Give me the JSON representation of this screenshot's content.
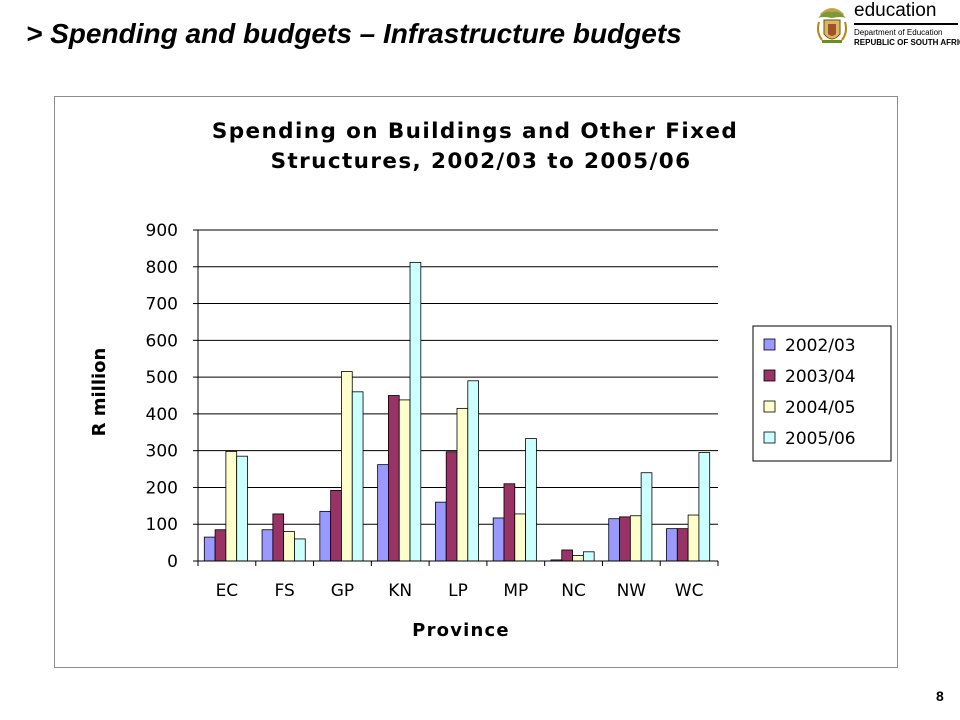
{
  "slide": {
    "title": "> Spending and budgets – Infrastructure budgets",
    "page_number": "8"
  },
  "logo": {
    "word": "education",
    "line1": "Department of Education",
    "line2": "REPUBLIC OF SOUTH AFRICA"
  },
  "chart_data": {
    "type": "bar",
    "title_lines": [
      "Spending on Buildings and Other Fixed",
      "Structures, 2002/03 to 2005/06"
    ],
    "xlabel": "Province",
    "ylabel": "R million",
    "categories": [
      "EC",
      "FS",
      "GP",
      "KN",
      "LP",
      "MP",
      "NC",
      "NW",
      "WC"
    ],
    "ylim": [
      0,
      900
    ],
    "yticks": [
      "0",
      "100",
      "200",
      "300",
      "400",
      "500",
      "600",
      "700",
      "800",
      "900"
    ],
    "grid": true,
    "legend_position": "right",
    "series": [
      {
        "name": "2002/03",
        "color": "#9999ff",
        "values": [
          65,
          85,
          135,
          262,
          160,
          117,
          3,
          115,
          88
        ]
      },
      {
        "name": "2003/04",
        "color": "#993366",
        "values": [
          85,
          128,
          192,
          450,
          297,
          210,
          30,
          120,
          88
        ]
      },
      {
        "name": "2004/05",
        "color": "#ffffcc",
        "values": [
          298,
          80,
          515,
          438,
          415,
          128,
          15,
          123,
          125
        ]
      },
      {
        "name": "2005/06",
        "color": "#ccffff",
        "values": [
          285,
          60,
          460,
          812,
          490,
          333,
          25,
          240,
          295
        ]
      }
    ]
  }
}
